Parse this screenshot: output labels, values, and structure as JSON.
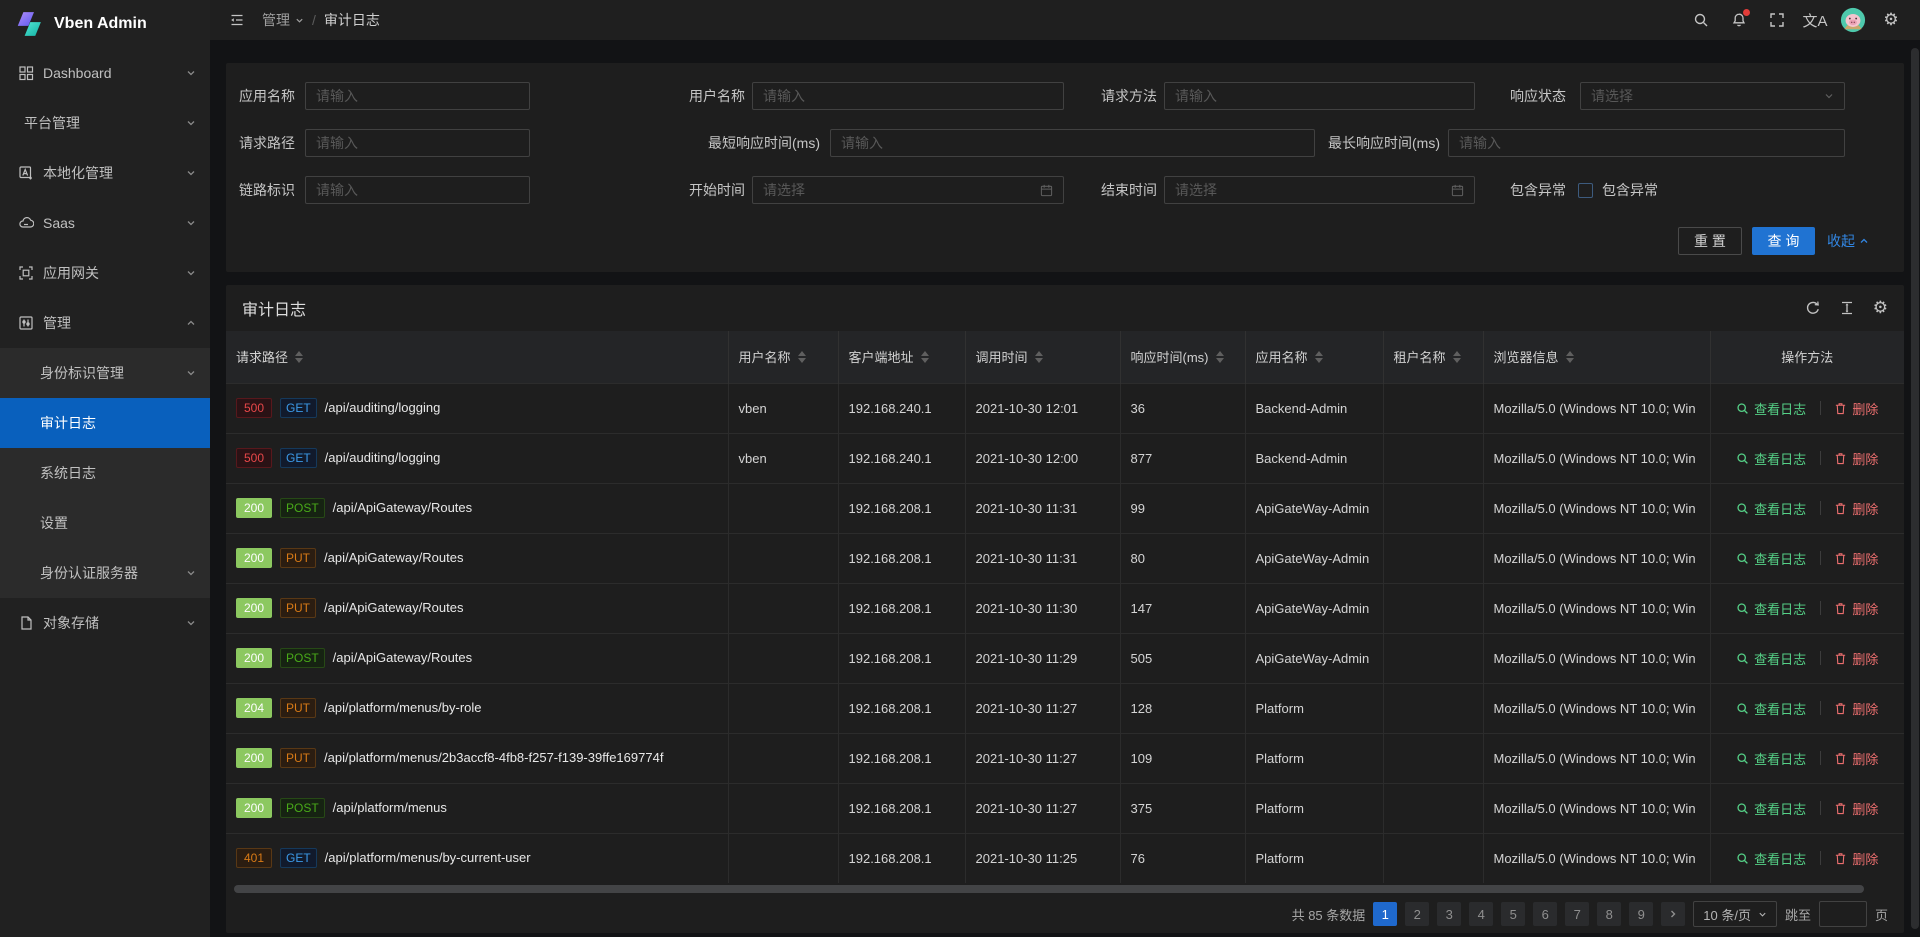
{
  "app": {
    "name": "Vben Admin"
  },
  "topbar": {
    "breadcrumb": {
      "parent": "管理",
      "separator": "/",
      "current": "审计日志"
    },
    "translate_glyph": "文A",
    "gear_glyph": "⚙"
  },
  "sidebar": {
    "items": [
      {
        "label": "Dashboard"
      },
      {
        "label": "平台管理"
      },
      {
        "label": "本地化管理"
      },
      {
        "label": "Saas"
      },
      {
        "label": "应用网关"
      },
      {
        "label": "管理"
      }
    ],
    "submenu": [
      {
        "label": "身份标识管理"
      },
      {
        "label": "审计日志"
      },
      {
        "label": "系统日志"
      },
      {
        "label": "设置"
      },
      {
        "label": "身份认证服务器"
      }
    ],
    "items_bottom": [
      {
        "label": "对象存储"
      }
    ],
    "active_item": "审计日志"
  },
  "filter": {
    "fields": {
      "app_name": {
        "label": "应用名称",
        "placeholder": "请输入"
      },
      "user_name": {
        "label": "用户名称",
        "placeholder": "请输入"
      },
      "http_method": {
        "label": "请求方法",
        "placeholder": "请输入"
      },
      "response_status": {
        "label": "响应状态",
        "placeholder": "请选择"
      },
      "request_path": {
        "label": "请求路径",
        "placeholder": "请输入"
      },
      "min_response": {
        "label": "最短响应时间(ms)",
        "placeholder": "请输入"
      },
      "max_response": {
        "label": "最长响应时间(ms)",
        "placeholder": "请输入"
      },
      "trace_id": {
        "label": "链路标识",
        "placeholder": "请输入"
      },
      "start_time": {
        "label": "开始时间",
        "placeholder": "请选择"
      },
      "end_time": {
        "label": "结束时间",
        "placeholder": "请选择"
      },
      "has_exception": {
        "label": "包含异常",
        "checkbox_label": "包含异常",
        "checked": false
      }
    },
    "buttons": {
      "reset": "重 置",
      "search": "查 询",
      "collapse": "收起"
    }
  },
  "table": {
    "title": "审计日志",
    "columns": [
      "请求路径",
      "用户名称",
      "客户端地址",
      "调用时间",
      "响应时间(ms)",
      "应用名称",
      "租户名称",
      "浏览器信息",
      "操作方法"
    ],
    "actions": {
      "view": "查看日志",
      "delete": "删除"
    },
    "rows": [
      {
        "status": "500",
        "status_type": "error",
        "method": "GET",
        "method_type": "get",
        "path": "/api/auditing/logging",
        "user": "vben",
        "client": "192.168.240.1",
        "time": "2021-10-30 12:01",
        "ms": "36",
        "app": "Backend-Admin",
        "tenant": "",
        "browser": "Mozilla/5.0 (Windows NT 10.0; Win"
      },
      {
        "status": "500",
        "status_type": "error",
        "method": "GET",
        "method_type": "get",
        "path": "/api/auditing/logging",
        "user": "vben",
        "client": "192.168.240.1",
        "time": "2021-10-30 12:00",
        "ms": "877",
        "app": "Backend-Admin",
        "tenant": "",
        "browser": "Mozilla/5.0 (Windows NT 10.0; Win"
      },
      {
        "status": "200",
        "status_type": "success",
        "method": "POST",
        "method_type": "post",
        "path": "/api/ApiGateway/Routes",
        "user": "",
        "client": "192.168.208.1",
        "time": "2021-10-30 11:31",
        "ms": "99",
        "app": "ApiGateWay-Admin",
        "tenant": "",
        "browser": "Mozilla/5.0 (Windows NT 10.0; Win"
      },
      {
        "status": "200",
        "status_type": "success",
        "method": "PUT",
        "method_type": "put",
        "path": "/api/ApiGateway/Routes",
        "user": "",
        "client": "192.168.208.1",
        "time": "2021-10-30 11:31",
        "ms": "80",
        "app": "ApiGateWay-Admin",
        "tenant": "",
        "browser": "Mozilla/5.0 (Windows NT 10.0; Win"
      },
      {
        "status": "200",
        "status_type": "success",
        "method": "PUT",
        "method_type": "put",
        "path": "/api/ApiGateway/Routes",
        "user": "",
        "client": "192.168.208.1",
        "time": "2021-10-30 11:30",
        "ms": "147",
        "app": "ApiGateWay-Admin",
        "tenant": "",
        "browser": "Mozilla/5.0 (Windows NT 10.0; Win"
      },
      {
        "status": "200",
        "status_type": "success",
        "method": "POST",
        "method_type": "post",
        "path": "/api/ApiGateway/Routes",
        "user": "",
        "client": "192.168.208.1",
        "time": "2021-10-30 11:29",
        "ms": "505",
        "app": "ApiGateWay-Admin",
        "tenant": "",
        "browser": "Mozilla/5.0 (Windows NT 10.0; Win"
      },
      {
        "status": "204",
        "status_type": "success",
        "method": "PUT",
        "method_type": "put",
        "path": "/api/platform/menus/by-role",
        "user": "",
        "client": "192.168.208.1",
        "time": "2021-10-30 11:27",
        "ms": "128",
        "app": "Platform",
        "tenant": "",
        "browser": "Mozilla/5.0 (Windows NT 10.0; Win"
      },
      {
        "status": "200",
        "status_type": "success",
        "method": "PUT",
        "method_type": "put",
        "path": "/api/platform/menus/2b3accf8-4fb8-f257-f139-39ffe169774f",
        "user": "",
        "client": "192.168.208.1",
        "time": "2021-10-30 11:27",
        "ms": "109",
        "app": "Platform",
        "tenant": "",
        "browser": "Mozilla/5.0 (Windows NT 10.0; Win"
      },
      {
        "status": "200",
        "status_type": "success",
        "method": "POST",
        "method_type": "post",
        "path": "/api/platform/menus",
        "user": "",
        "client": "192.168.208.1",
        "time": "2021-10-30 11:27",
        "ms": "375",
        "app": "Platform",
        "tenant": "",
        "browser": "Mozilla/5.0 (Windows NT 10.0; Win"
      },
      {
        "status": "401",
        "status_type": "warning",
        "method": "GET",
        "method_type": "get",
        "path": "/api/platform/menus/by-current-user",
        "user": "",
        "client": "192.168.208.1",
        "time": "2021-10-30 11:25",
        "ms": "76",
        "app": "Platform",
        "tenant": "",
        "browser": "Mozilla/5.0 (Windows NT 10.0; Win"
      }
    ]
  },
  "pagination": {
    "total": "共 85 条数据",
    "pages": [
      "1",
      "2",
      "3",
      "4",
      "5",
      "6",
      "7",
      "8",
      "9"
    ],
    "active_page": "1",
    "page_size": "10 条/页",
    "jump_label": "跳至",
    "jump_unit": "页"
  },
  "colors": {
    "primary": "#0960bd",
    "button_primary": "#2073d2",
    "success": "#55d187",
    "error": "#ed6f6f",
    "tag_success_bg": "#8cc860"
  }
}
